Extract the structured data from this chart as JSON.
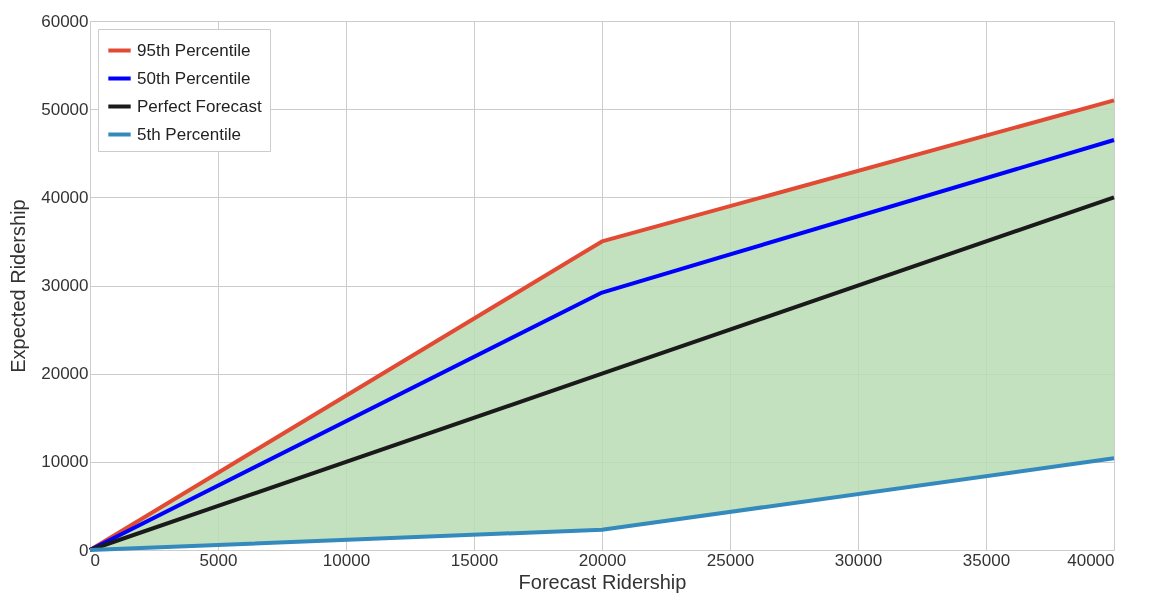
{
  "chart_data": {
    "type": "line",
    "xlabel": "Forecast Ridership",
    "ylabel": "Expected Ridership",
    "x": [
      0,
      20000,
      40000
    ],
    "xlim": [
      0,
      40000
    ],
    "xticks": [
      0,
      5000,
      10000,
      15000,
      20000,
      25000,
      30000,
      35000,
      40000
    ],
    "ylim": [
      0,
      60000
    ],
    "yticks": [
      0,
      10000,
      20000,
      30000,
      40000,
      50000,
      60000
    ],
    "grid": true,
    "legend": "top left",
    "series": [
      {
        "name": "95th Percentile",
        "color": "#e24a33",
        "values": [
          0,
          35000,
          51000
        ]
      },
      {
        "name": "50th Percentile",
        "color": "#0000ff",
        "values": [
          0,
          29200,
          46500
        ],
        "lower": [
          0,
          2300,
          10400
        ],
        "upper": [
          0,
          35000,
          51000
        ]
      },
      {
        "name": "Perfect Forecast",
        "color": "#1a1a1a",
        "values": [
          0,
          20000,
          40000
        ]
      },
      {
        "name": "5th Percentile",
        "color": "#348abd",
        "values": [
          0,
          2300,
          10400
        ]
      }
    ]
  }
}
